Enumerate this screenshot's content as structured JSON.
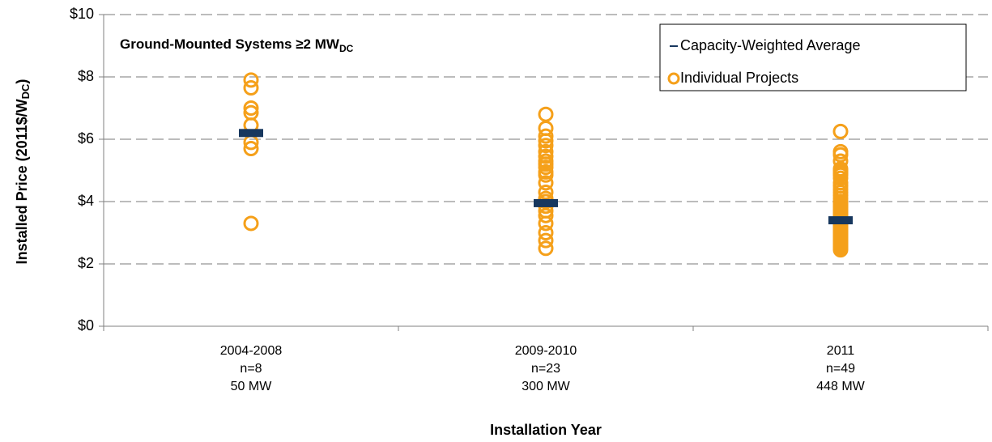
{
  "chart_data": {
    "type": "scatter",
    "title": [
      "Ground-Mounted  Systems ≥2 MW",
      "DC"
    ],
    "ylabel": [
      "Installed Price (2011$/W",
      "DC",
      ")"
    ],
    "xlabel": "Installation Year",
    "categories": [
      [
        "2004-2008",
        "n=8",
        "50 MW"
      ],
      [
        "2009-2010",
        "n=23",
        "300 MW"
      ],
      [
        "2011",
        "n=49",
        "448 MW"
      ]
    ],
    "ylim": [
      0,
      10
    ],
    "yticks": [
      {
        "value": 0,
        "label": "$0"
      },
      {
        "value": 2,
        "label": "$2"
      },
      {
        "value": 4,
        "label": "$4"
      },
      {
        "value": 6,
        "label": "$6"
      },
      {
        "value": 8,
        "label": "$8"
      },
      {
        "value": 10,
        "label": "$10"
      }
    ],
    "grid": true,
    "legend": "top-right",
    "series": [
      {
        "name": "Capacity-Weighted Average",
        "color": "#17375e",
        "values": [
          6.2,
          3.95,
          3.4
        ]
      },
      {
        "name": "Individual Projects",
        "color": "#f5a01a",
        "values": [
          [
            7.9,
            7.65,
            7.0,
            6.85,
            6.45,
            5.9,
            5.7,
            3.3
          ],
          [
            6.8,
            6.35,
            6.1,
            5.95,
            5.8,
            5.6,
            5.45,
            5.3,
            5.2,
            5.1,
            4.95,
            4.85,
            4.6,
            4.3,
            4.1,
            4.0,
            3.85,
            3.7,
            3.55,
            3.3,
            3.0,
            2.75,
            2.5
          ],
          [
            6.25,
            5.6,
            5.5,
            5.3,
            5.05,
            5.0,
            4.95,
            4.9,
            4.85,
            4.75,
            4.6,
            4.5,
            4.4,
            4.3,
            4.2,
            4.1,
            4.0,
            3.95,
            3.9,
            3.85,
            3.8,
            3.75,
            3.7,
            3.65,
            3.6,
            3.55,
            3.5,
            3.45,
            3.4,
            3.35,
            3.3,
            3.25,
            3.2,
            3.15,
            3.1,
            3.05,
            3.02,
            3.0,
            2.95,
            2.9,
            2.85,
            2.8,
            2.75,
            2.7,
            2.65,
            2.6,
            2.55,
            2.5,
            2.45
          ]
        ]
      }
    ]
  }
}
